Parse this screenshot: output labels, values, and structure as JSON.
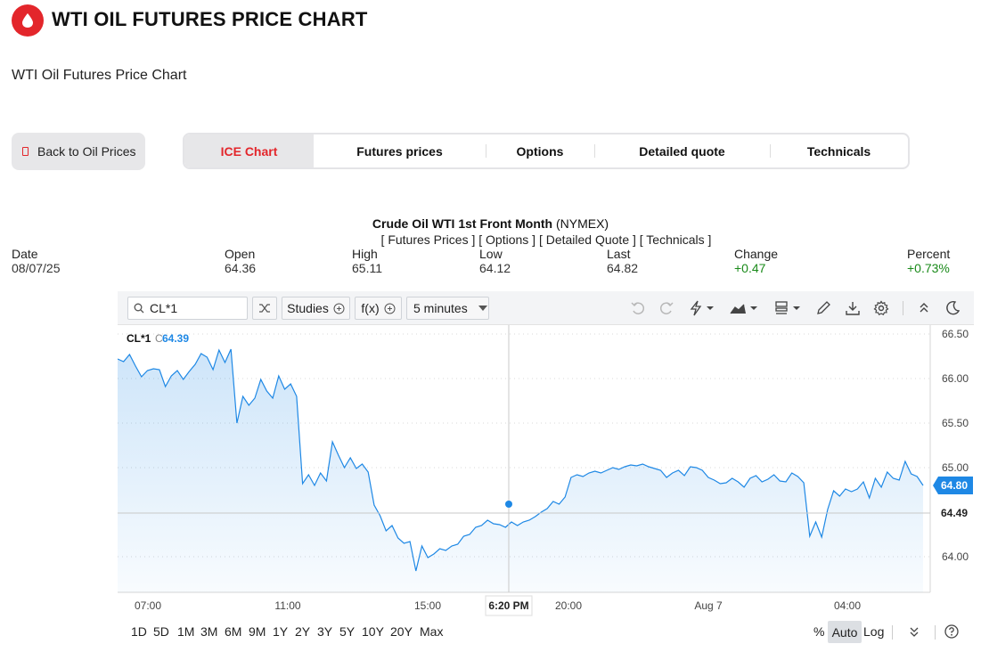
{
  "header": {
    "title": "WTI OIL FUTURES PRICE CHART",
    "subtitle": "WTI Oil Futures Price Chart",
    "logo_icon": "oil-drop-icon",
    "brand_color": "#e3262b"
  },
  "nav": {
    "back_label": "Back to Oil Prices",
    "tabs": [
      {
        "label": "ICE Chart",
        "active": true
      },
      {
        "label": "Futures prices",
        "active": false
      },
      {
        "label": "Options",
        "active": false
      },
      {
        "label": "Detailed quote",
        "active": false
      },
      {
        "label": "Technicals",
        "active": false
      }
    ]
  },
  "quote": {
    "name": "Crude Oil WTI 1st Front Month",
    "exchange": "(NYMEX)",
    "links": "[ Futures Prices ] [ Options ] [ Detailed Quote ] [ Technicals ]",
    "stats": [
      {
        "label": "Date",
        "value": "08/07/25"
      },
      {
        "label": "Open",
        "value": "64.36"
      },
      {
        "label": "High",
        "value": "65.11"
      },
      {
        "label": "Low",
        "value": "64.12"
      },
      {
        "label": "Last",
        "value": "64.82"
      },
      {
        "label": "Change",
        "value": "+0.47"
      },
      {
        "label": "Percent",
        "value": "+0.73%"
      }
    ],
    "positive_color": "#1a8a1a"
  },
  "toolbar": {
    "symbol": "CL*1",
    "studies_label": "Studies",
    "fx_label": "f(x)",
    "interval_label": "5 minutes",
    "icons": [
      "undo-icon",
      "redo-icon",
      "lightning-icon",
      "chart-type-icon",
      "layout-icon",
      "pencil-icon",
      "download-icon",
      "settings-icon",
      "collapse-icon",
      "dark-mode-icon"
    ]
  },
  "chart_data": {
    "type": "area",
    "symbol_label": "CL*1",
    "symbol_prefix": "C",
    "symbol_price": "64.39",
    "line_color": "#1e88e5",
    "ylim": [
      63.6,
      66.6
    ],
    "y_ticks": [
      "66.50",
      "66.00",
      "65.50",
      "65.00",
      "64.00"
    ],
    "last_price_label": "64.80",
    "crosshair_price_label": "64.49",
    "crosshair_price": 64.49,
    "crosshair_time_label": "6:20 PM",
    "x_ticks": [
      "07:00",
      "11:00",
      "15:00",
      "20:00",
      "Aug 7",
      "04:00"
    ],
    "values": [
      66.22,
      66.19,
      66.27,
      66.14,
      66.02,
      66.09,
      66.11,
      66.1,
      65.91,
      66.03,
      66.09,
      65.99,
      66.08,
      66.16,
      66.28,
      66.24,
      66.1,
      66.32,
      66.18,
      66.33,
      65.5,
      65.8,
      65.7,
      65.78,
      65.99,
      65.86,
      65.78,
      66.03,
      65.88,
      65.94,
      65.8,
      64.82,
      64.92,
      64.8,
      64.94,
      64.85,
      65.29,
      65.14,
      65.0,
      65.11,
      64.99,
      65.04,
      64.95,
      64.58,
      64.46,
      64.29,
      64.35,
      64.21,
      64.15,
      64.17,
      63.84,
      64.12,
      63.99,
      64.03,
      64.09,
      64.07,
      64.12,
      64.14,
      64.23,
      64.25,
      64.33,
      64.35,
      64.41,
      64.37,
      64.36,
      64.33,
      64.39,
      64.35,
      64.39,
      64.41,
      64.45,
      64.5,
      64.54,
      64.62,
      64.59,
      64.67,
      64.89,
      64.92,
      64.9,
      64.94,
      64.96,
      64.94,
      64.97,
      65.0,
      64.98,
      65.01,
      65.03,
      65.02,
      65.04,
      65.01,
      64.99,
      64.97,
      64.89,
      64.94,
      64.97,
      64.91,
      65.01,
      65.0,
      64.97,
      64.89,
      64.86,
      64.82,
      64.83,
      64.88,
      64.84,
      64.78,
      64.88,
      64.91,
      64.84,
      64.87,
      64.92,
      64.85,
      64.84,
      64.94,
      64.9,
      64.83,
      64.23,
      64.39,
      64.22,
      64.53,
      64.74,
      64.68,
      64.76,
      64.73,
      64.76,
      64.84,
      64.66,
      64.88,
      64.78,
      64.95,
      64.88,
      64.86,
      65.07,
      64.93,
      64.9,
      64.8
    ]
  },
  "bottom": {
    "ranges": [
      "1D",
      "5D",
      "1M",
      "3M",
      "6M",
      "9M",
      "1Y",
      "2Y",
      "3Y",
      "5Y",
      "10Y",
      "20Y",
      "Max"
    ],
    "percent_label": "%",
    "auto_label": "Auto",
    "log_label": "Log"
  }
}
